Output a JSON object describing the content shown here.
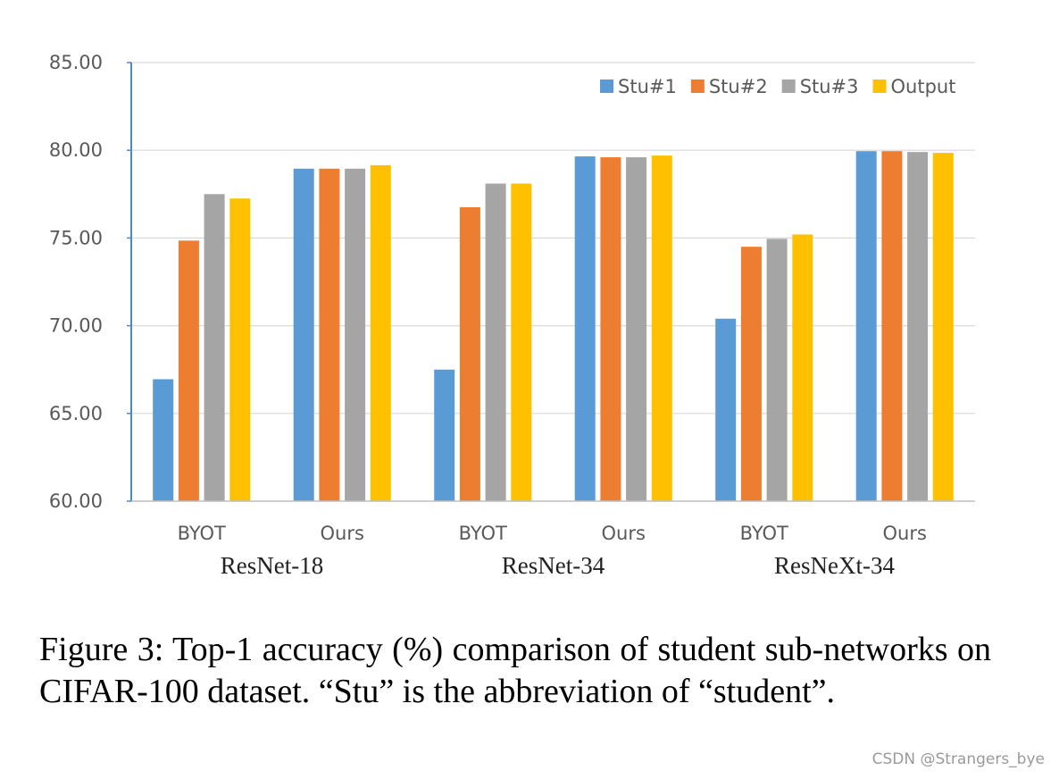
{
  "chart_data": {
    "type": "bar",
    "groups": [
      "ResNet-18",
      "ResNet-34",
      "ResNeXt-34"
    ],
    "categories": [
      "BYOT",
      "Ours",
      "BYOT",
      "Ours",
      "BYOT",
      "Ours"
    ],
    "category_group": [
      0,
      0,
      1,
      1,
      2,
      2
    ],
    "series": [
      {
        "name": "Stu#1",
        "color": "#5B9BD5",
        "values": [
          66.95,
          78.95,
          67.5,
          79.65,
          70.4,
          79.95
        ]
      },
      {
        "name": "Stu#2",
        "color": "#ED7D31",
        "values": [
          74.85,
          78.95,
          76.75,
          79.6,
          74.5,
          79.95
        ]
      },
      {
        "name": "Stu#3",
        "color": "#A5A5A5",
        "values": [
          77.5,
          78.95,
          78.1,
          79.6,
          74.95,
          79.9
        ]
      },
      {
        "name": "Output",
        "color": "#FFC000",
        "values": [
          77.25,
          79.15,
          78.1,
          79.7,
          75.2,
          79.85
        ]
      }
    ],
    "ylim": [
      60,
      85
    ],
    "yticks": [
      "60.00",
      "65.00",
      "70.00",
      "75.00",
      "80.00",
      "85.00"
    ],
    "grid": true,
    "legend_position": "top-right"
  },
  "caption": "Figure 3: Top-1 accuracy (%) comparison of student sub-networks on CIFAR-100 dataset. “Stu” is the abbreviation of “student”.",
  "watermark": "CSDN @Strangers_bye"
}
